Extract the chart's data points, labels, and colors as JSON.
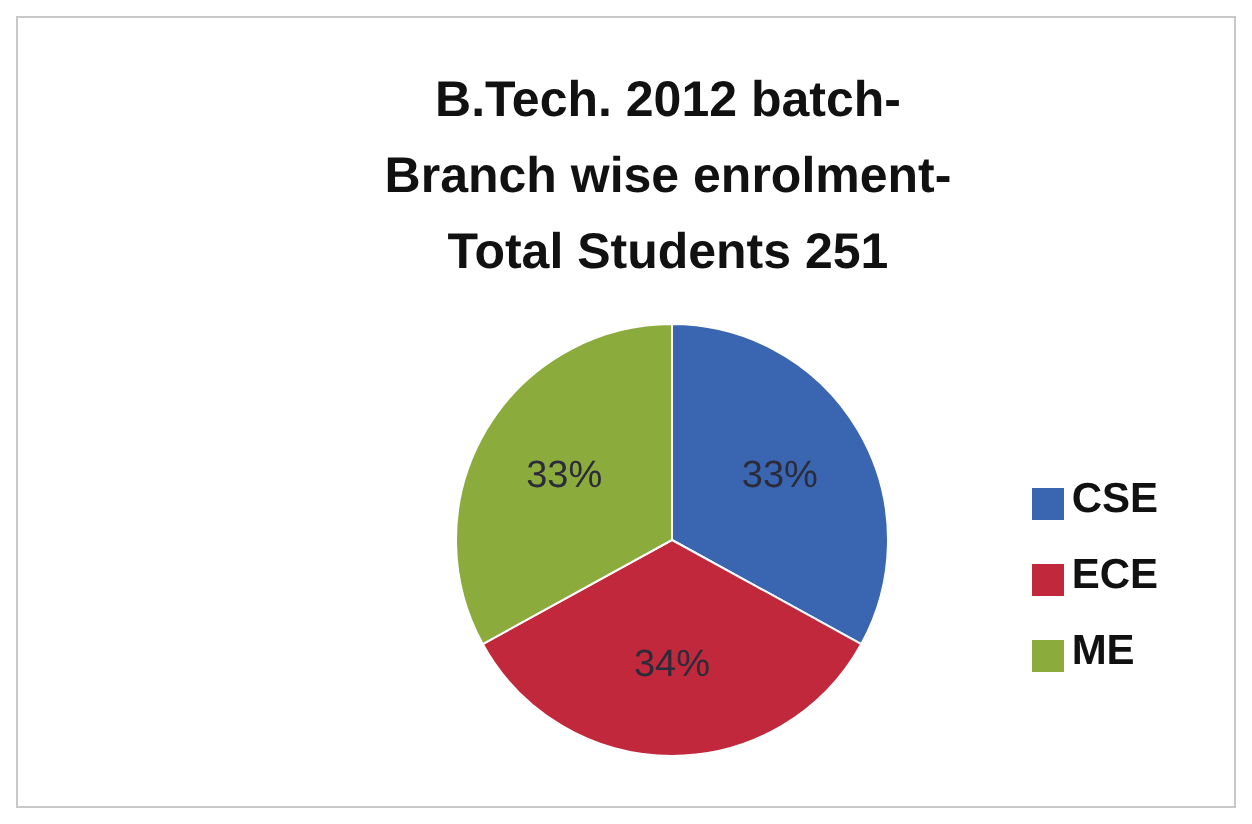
{
  "chart_data": {
    "type": "pie",
    "title": "B.Tech. 2012 batch-Branch wise enrolment- Total Students 251",
    "categories": [
      "CSE",
      "ECE",
      "ME"
    ],
    "values": [
      33,
      34,
      33
    ],
    "value_labels": [
      "33%",
      "34%",
      "33%"
    ],
    "colors": [
      "#3a65b0",
      "#c1283b",
      "#8bab3d"
    ],
    "legend": "right"
  }
}
